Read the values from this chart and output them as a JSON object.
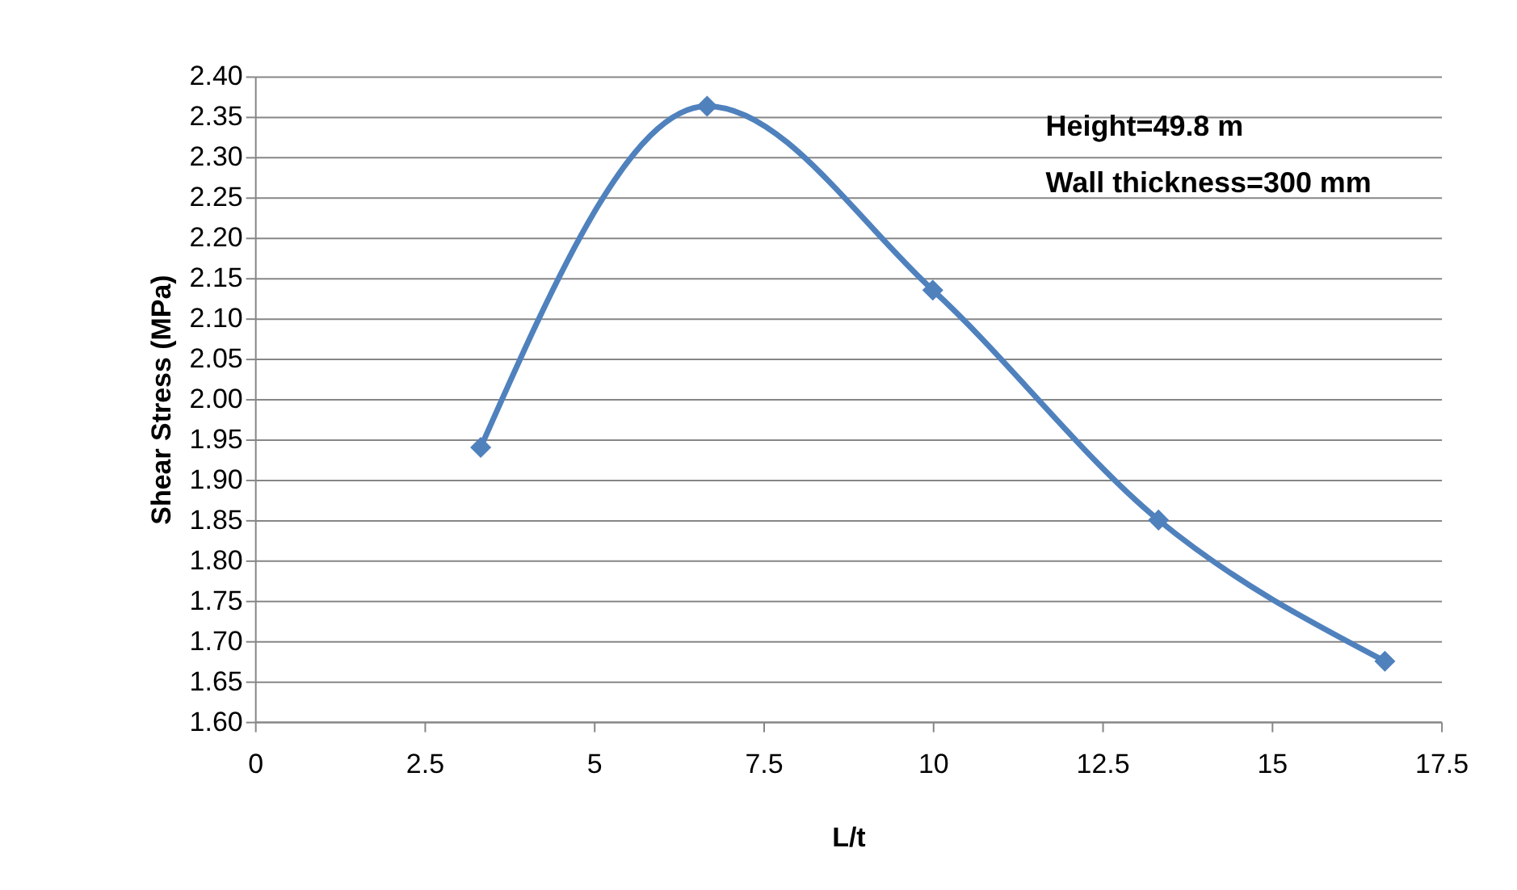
{
  "chart_data": {
    "type": "line",
    "xlabel": "L/t",
    "ylabel": "Shear Stress (MPa)",
    "x": [
      3.33,
      6.67,
      10,
      13.33,
      16.67
    ],
    "series": [
      {
        "color": "#4f81bd",
        "values": [
          1.94,
          2.363,
          2.135,
          1.85,
          1.675
        ]
      }
    ],
    "xlim": [
      0,
      17.5
    ],
    "xticks": [
      0,
      2.5,
      5,
      7.5,
      10,
      12.5,
      15,
      17.5
    ],
    "ylim": [
      1.6,
      2.4
    ],
    "yticks": [
      {
        "value": 1.6,
        "label": "1.60"
      },
      {
        "value": 1.65,
        "label": "1.65"
      },
      {
        "value": 1.7,
        "label": "1.70"
      },
      {
        "value": 1.75,
        "label": "1.75"
      },
      {
        "value": 1.8,
        "label": "1.80"
      },
      {
        "value": 1.85,
        "label": "1.85"
      },
      {
        "value": 1.9,
        "label": "1.90"
      },
      {
        "value": 1.95,
        "label": "1.95"
      },
      {
        "value": 2.0,
        "label": "2.00"
      },
      {
        "value": 2.05,
        "label": "2.05"
      },
      {
        "value": 2.1,
        "label": "2.10"
      },
      {
        "value": 2.15,
        "label": "2.15"
      },
      {
        "value": 2.2,
        "label": "2.20"
      },
      {
        "value": 2.25,
        "label": "2.25"
      },
      {
        "value": 2.3,
        "label": "2.30"
      },
      {
        "value": 2.35,
        "label": "2.35"
      },
      {
        "value": 2.4,
        "label": "2.40"
      }
    ],
    "annotations": [
      "Height=49.8 m",
      "Wall thickness=300 mm"
    ],
    "grid": "y",
    "marker": "diamond",
    "line_style": "solid"
  }
}
